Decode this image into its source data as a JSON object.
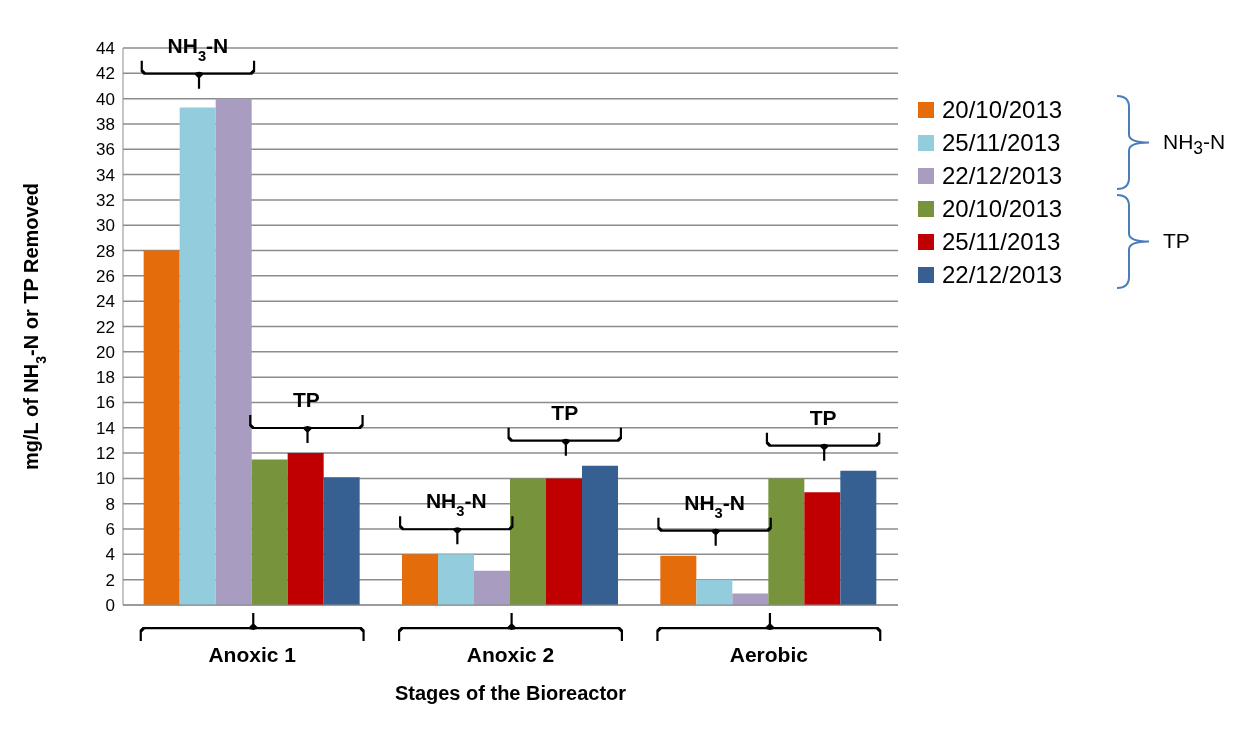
{
  "chart_data": {
    "type": "bar",
    "xlabel": "Stages of the Bioreactor",
    "ylabel": "mg/L of NH$_{3}$-N or TP Removed",
    "categories": [
      "Anoxic 1",
      "Anoxic 2",
      "Aerobic"
    ],
    "series": [
      {
        "name": "20/10/2013",
        "color": "#e46c0a",
        "values": [
          28,
          4,
          3.9
        ]
      },
      {
        "name": "25/11/2013",
        "color": "#93cddd",
        "values": [
          39.3,
          4,
          2
        ]
      },
      {
        "name": "22/12/2013",
        "color": "#a89cc0",
        "values": [
          40,
          2.7,
          0.9
        ]
      },
      {
        "name": "20/10/2013",
        "color": "#77933c",
        "values": [
          11.5,
          10,
          10
        ]
      },
      {
        "name": "25/11/2013",
        "color": "#c00000",
        "values": [
          12,
          10,
          8.9
        ]
      },
      {
        "name": "22/12/2013",
        "color": "#366092",
        "values": [
          10.1,
          11,
          10.6
        ]
      }
    ],
    "ylim": [
      0,
      44
    ],
    "yticks": [
      0,
      2,
      4,
      6,
      8,
      10,
      12,
      14,
      16,
      18,
      20,
      22,
      24,
      26,
      28,
      30,
      32,
      34,
      36,
      38,
      40,
      42,
      44
    ],
    "grid": "y",
    "legend": "right",
    "annotations": [
      {
        "text": "NH$_{3}$-N",
        "x": "Anoxic 1",
        "y": 40
      },
      {
        "text": "TP",
        "x": "Anoxic 1",
        "y": 12
      },
      {
        "text": "NH$_{3}$-N",
        "x": "Anoxic 2",
        "y": 4
      },
      "TP",
      {
        "text": "NH$_{3}$-N",
        "x": "Aerobic",
        "y": 3.9
      },
      "TP",
      "NH$_{3}$-N",
      "TP"
    ]
  }
}
